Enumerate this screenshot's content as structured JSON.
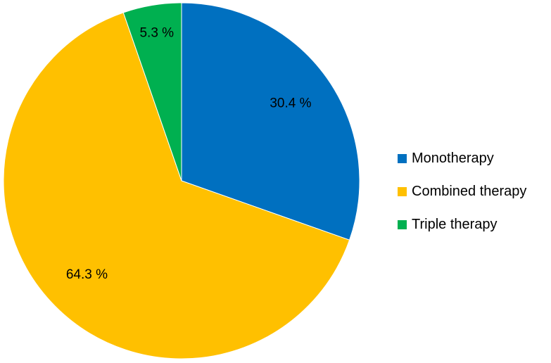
{
  "chart_data": {
    "type": "pie",
    "title": "",
    "slices": [
      {
        "name": "Monotherapy",
        "value": 30.4,
        "label": "30.4 %",
        "color": "#0070C0"
      },
      {
        "name": "Combined therapy",
        "value": 64.3,
        "label": "64.3 %",
        "color": "#FFC000"
      },
      {
        "name": "Triple therapy",
        "value": 5.3,
        "label": "5.3 %",
        "color": "#00B050"
      }
    ],
    "start_angle_deg": 0,
    "direction": "clockwise",
    "legend": {
      "position": "right"
    }
  },
  "legend": {
    "items": [
      {
        "label": "Monotherapy",
        "color": "#0070C0"
      },
      {
        "label": "Combined therapy",
        "color": "#FFC000"
      },
      {
        "label": "Triple therapy",
        "color": "#00B050"
      }
    ]
  }
}
